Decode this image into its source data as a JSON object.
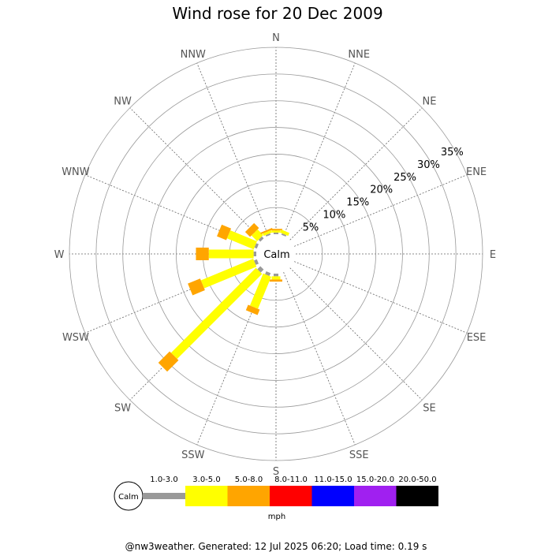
{
  "chart_data": {
    "type": "wind-rose",
    "title": "Wind rose for 20 Dec 2009",
    "directions": [
      "N",
      "NNE",
      "NE",
      "ENE",
      "E",
      "ESE",
      "SE",
      "SSE",
      "S",
      "SSW",
      "SW",
      "WSW",
      "W",
      "WNW",
      "NW",
      "NNW"
    ],
    "radial_ticks": [
      "5%",
      "10%",
      "15%",
      "20%",
      "25%",
      "30%",
      "35%"
    ],
    "radial_max": 35,
    "calm_label": "Calm",
    "speed_bins": [
      {
        "label": "1.0-3.0",
        "color": "#999999"
      },
      {
        "label": "3.0-5.0",
        "color": "#ffff00"
      },
      {
        "label": "5.0-8.0",
        "color": "#ffa500"
      },
      {
        "label": "8.0-11.0",
        "color": "#ff0000"
      },
      {
        "label": "11.0-15.0",
        "color": "#0000ff"
      },
      {
        "label": "15.0-20.0",
        "color": "#a020f0"
      },
      {
        "label": "20.0-50.0",
        "color": "#000000"
      }
    ],
    "units": "mph",
    "series": [
      {
        "direction": "N",
        "values": [
          0.3,
          0.4,
          0.3,
          0,
          0,
          0,
          0
        ]
      },
      {
        "direction": "NNE",
        "values": [
          0.3,
          0.6,
          0,
          0,
          0,
          0,
          0
        ]
      },
      {
        "direction": "NE",
        "values": [
          0,
          0,
          0,
          0,
          0,
          0,
          0
        ]
      },
      {
        "direction": "ENE",
        "values": [
          0,
          0,
          0,
          0,
          0,
          0,
          0
        ]
      },
      {
        "direction": "E",
        "values": [
          0,
          0,
          0,
          0,
          0,
          0,
          0
        ]
      },
      {
        "direction": "ESE",
        "values": [
          0,
          0,
          0,
          0,
          0,
          0,
          0
        ]
      },
      {
        "direction": "SE",
        "values": [
          0,
          0,
          0,
          0,
          0,
          0,
          0
        ]
      },
      {
        "direction": "SSE",
        "values": [
          0,
          0,
          0,
          0,
          0,
          0,
          0
        ]
      },
      {
        "direction": "S",
        "values": [
          0.5,
          0.6,
          0.4,
          0,
          0,
          0,
          0
        ]
      },
      {
        "direction": "SSW",
        "values": [
          0.6,
          6.5,
          1.1,
          0,
          0,
          0,
          0
        ]
      },
      {
        "direction": "SW",
        "values": [
          0.8,
          22.5,
          3.0,
          0,
          0,
          0,
          0
        ]
      },
      {
        "direction": "WSW",
        "values": [
          0.6,
          10.6,
          2.5,
          0,
          0,
          0,
          0
        ]
      },
      {
        "direction": "W",
        "values": [
          0.5,
          8.4,
          2.4,
          0,
          0,
          0,
          0
        ]
      },
      {
        "direction": "WNW",
        "values": [
          0.5,
          5.4,
          1.9,
          0,
          0,
          0,
          0
        ]
      },
      {
        "direction": "NW",
        "values": [
          0.5,
          1.5,
          1.3,
          0,
          0,
          0,
          0
        ]
      },
      {
        "direction": "NNW",
        "values": [
          0.3,
          0.5,
          0.3,
          0,
          0,
          0,
          0
        ]
      }
    ]
  },
  "footer": "@nw3weather.  Generated: 12 Jul 2025 06:20; Load time: 0.19 s"
}
